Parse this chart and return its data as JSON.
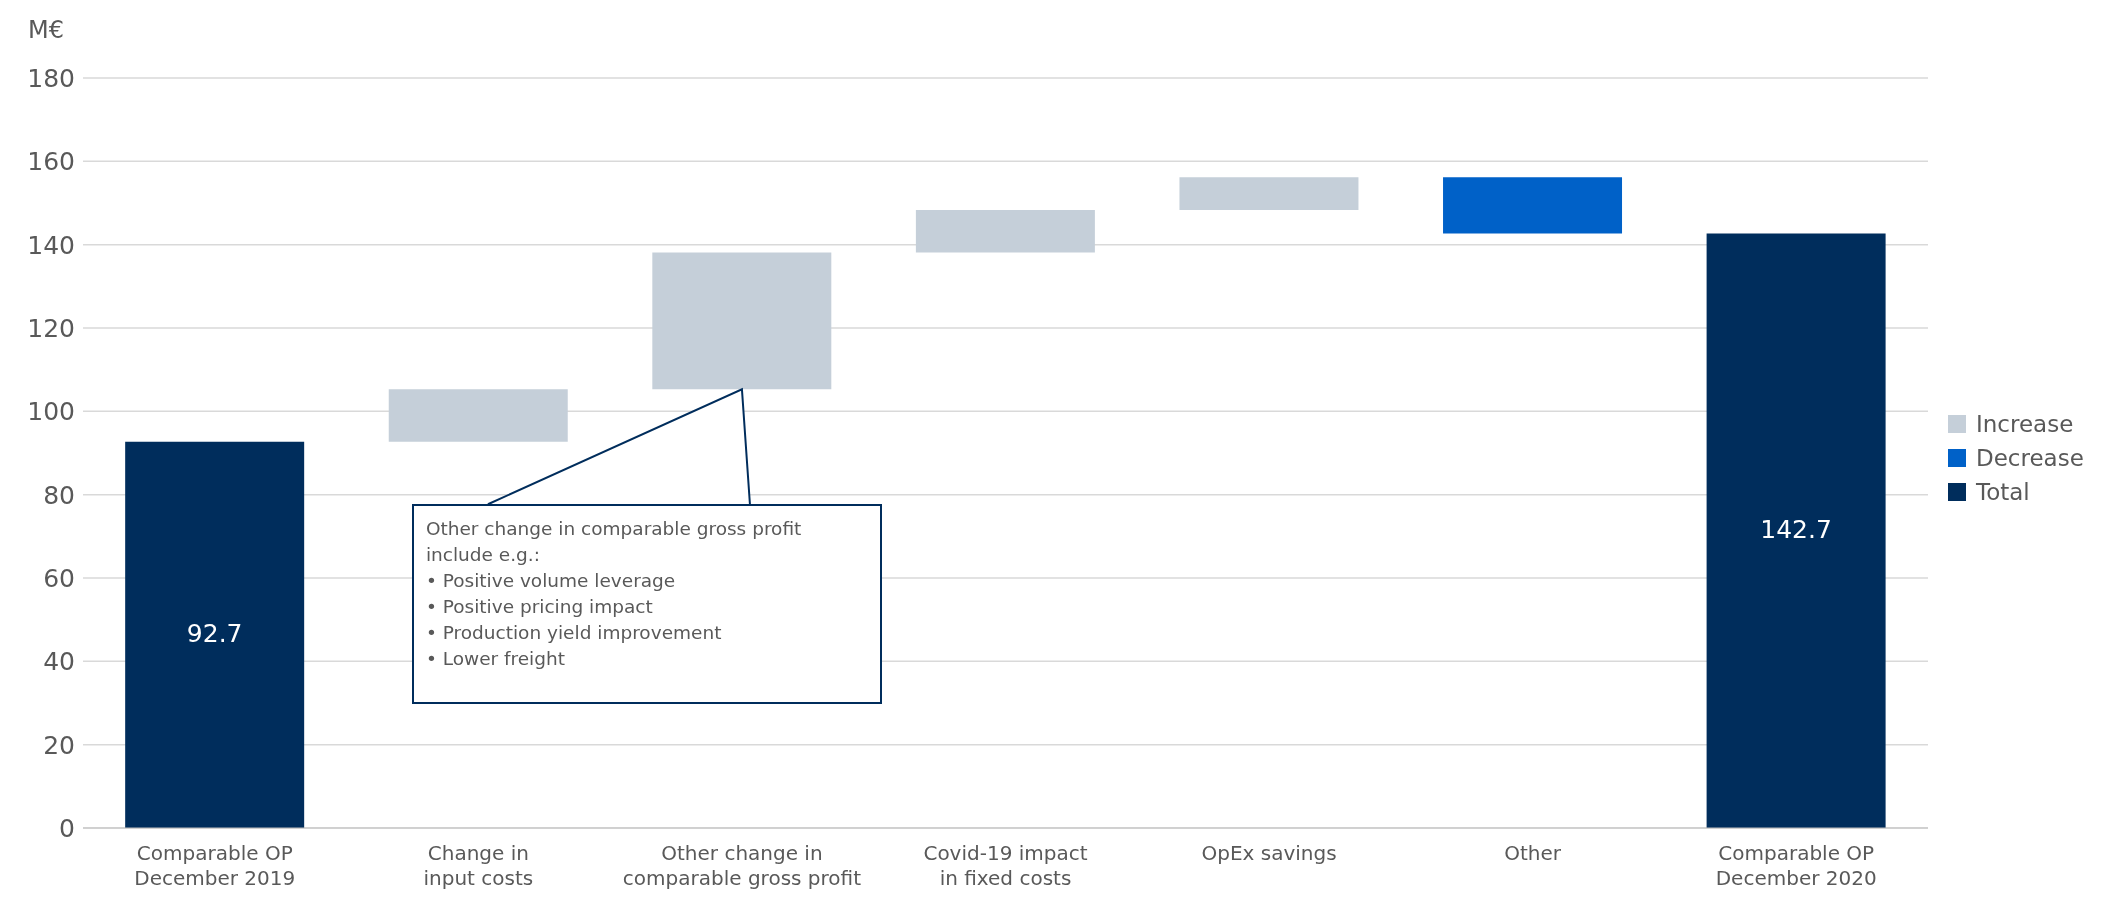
{
  "chart_data": {
    "type": "bar",
    "ylabel": "M€",
    "categories": [
      "Comparable OP\nDecember 2019",
      "Change in\ninput costs",
      "Other change in\ncomparable gross profit",
      "Covid-19 impact\nin fixed costs",
      "OpEx savings",
      "Other",
      "Comparable OP\nDecember 2020"
    ],
    "series": [
      {
        "name": "Increase",
        "color": "#c5cfd9",
        "values": [
          null,
          12.6,
          32.8,
          10.2,
          7.9,
          null,
          null
        ],
        "base": [
          null,
          92.7,
          105.3,
          138.1,
          148.3,
          null,
          null
        ]
      },
      {
        "name": "Decrease",
        "color": "#0061c8",
        "values": [
          null,
          null,
          null,
          null,
          null,
          -13.5,
          null
        ],
        "base": [
          null,
          null,
          null,
          null,
          null,
          156.2,
          null
        ]
      },
      {
        "name": "Total",
        "color": "#002d5c",
        "values": [
          92.7,
          null,
          null,
          null,
          null,
          null,
          142.7
        ],
        "value_labels": [
          "92.7",
          null,
          null,
          null,
          null,
          null,
          "142.7"
        ]
      }
    ],
    "ylim": [
      0,
      180
    ],
    "yticks": [
      0,
      20,
      40,
      60,
      80,
      100,
      120,
      140,
      160,
      180
    ],
    "grid": "y",
    "legend": "right",
    "annotations": [
      {
        "text": "Other change in comparable gross profit include e.g.:\n• Positive volume leverage\n• Positive pricing impact\n• Production yield improvement\n• Lower freight",
        "x": "Other change in\ncomparable gross profit",
        "y": 105.3
      }
    ]
  }
}
